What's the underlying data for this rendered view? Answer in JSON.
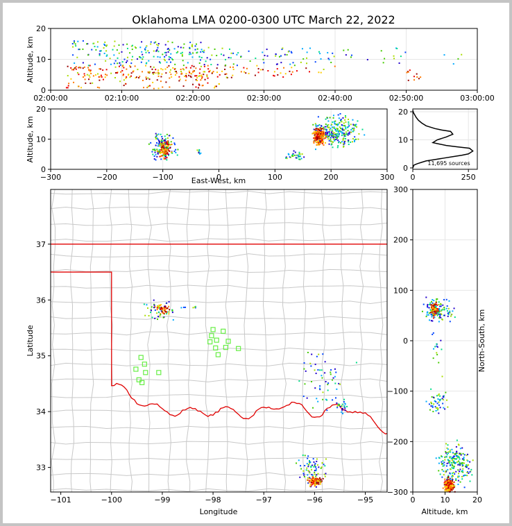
{
  "title": "Oklahoma LMA 0200-0300 UTC March 22, 2022",
  "colors": {
    "state_border": "#e00000",
    "county_lines": "#c8c8c8",
    "sensor": "#66ee44",
    "grid": "#e6e6e6"
  },
  "chart_data": [
    {
      "name": "time-height",
      "type": "heatmap",
      "xlabel": "",
      "ylabel": "Altitude, km",
      "x_ticks": [
        "02:00:00",
        "02:10:00",
        "02:20:00",
        "02:30:00",
        "02:40:00",
        "02:50:00",
        "03:00:00"
      ],
      "ylim": [
        0,
        20
      ],
      "y_ticks": [
        0,
        10,
        20
      ],
      "clusters": [
        {
          "x": [
            3,
            22
          ],
          "y": [
            4,
            16
          ],
          "density": 0.55
        },
        {
          "x": [
            2,
            24
          ],
          "y": [
            0.5,
            8
          ],
          "density": 0.4
        },
        {
          "x": [
            22,
            34
          ],
          "y": [
            4,
            14
          ],
          "density": 0.35
        },
        {
          "x": [
            34,
            40
          ],
          "y": [
            4,
            14
          ],
          "density": 0.2
        },
        {
          "x": [
            40,
            50
          ],
          "y": [
            8,
            14
          ],
          "density": 0.12
        },
        {
          "x": [
            50,
            58
          ],
          "y": [
            8,
            12
          ],
          "density": 0.06
        },
        {
          "x": [
            50,
            52
          ],
          "y": [
            3,
            8
          ],
          "density": 0.5
        }
      ]
    },
    {
      "name": "east-west-height",
      "type": "heatmap",
      "xlabel": "East-West, km",
      "ylabel": "Altitude, km",
      "xlim": [
        -300,
        300
      ],
      "x_ticks": [
        -300,
        -200,
        -100,
        0,
        100,
        200,
        300
      ],
      "ylim": [
        0,
        20
      ],
      "y_ticks": [
        0,
        10,
        20
      ],
      "clusters": [
        {
          "x": [
            -130,
            -70
          ],
          "y": [
            1,
            14
          ],
          "density": 0.5,
          "core": [
            -98,
            6.5
          ]
        },
        {
          "x": [
            -45,
            -30
          ],
          "y": [
            4.5,
            7
          ],
          "density": 0.4
        },
        {
          "x": [
            110,
            160
          ],
          "y": [
            2,
            7
          ],
          "density": 0.25
        },
        {
          "x": [
            150,
            270
          ],
          "y": [
            5,
            20
          ],
          "density": 0.5,
          "core": [
            178,
            11
          ]
        }
      ]
    },
    {
      "name": "altitude-histogram",
      "type": "line",
      "xlabel": "",
      "ylabel": "",
      "xlim": [
        0,
        290
      ],
      "x_ticks": [
        0,
        250
      ],
      "ylim": [
        -0.5,
        21
      ],
      "y_ticks": [
        0,
        10,
        20
      ],
      "annotation": "11,695 sources",
      "x": [
        0,
        5,
        20,
        40,
        60,
        100,
        140,
        180,
        220,
        250,
        270,
        255,
        200,
        150,
        120,
        90,
        110,
        150,
        180,
        170,
        130,
        100,
        80,
        60,
        40,
        25,
        15,
        8,
        4,
        2,
        0
      ],
      "y": [
        0,
        1,
        1.5,
        2,
        2.5,
        3,
        3.5,
        4,
        4.5,
        5,
        6,
        7,
        7.5,
        8,
        8.5,
        9,
        10,
        11,
        12,
        13,
        13.5,
        14,
        14.5,
        15,
        16,
        17,
        18,
        19,
        19.5,
        20,
        20.5
      ]
    },
    {
      "name": "plan-view-map",
      "type": "scatter",
      "xlabel": "Longitude",
      "ylabel": "Latitude",
      "xlim": [
        -101.2,
        -94.57
      ],
      "x_ticks": [
        -101,
        -100,
        -99,
        -98,
        -97,
        -96,
        -95
      ],
      "ylim": [
        32.56,
        37.98
      ],
      "y_ticks": [
        33,
        34,
        35,
        36,
        37
      ],
      "sensors": [
        [
          -98.0,
          35.47
        ],
        [
          -98.03,
          35.36
        ],
        [
          -97.93,
          35.28
        ],
        [
          -98.06,
          35.25
        ],
        [
          -97.8,
          35.44
        ],
        [
          -97.7,
          35.26
        ],
        [
          -97.75,
          35.15
        ],
        [
          -97.5,
          35.13
        ],
        [
          -97.95,
          35.14
        ],
        [
          -97.9,
          35.02
        ],
        [
          -99.42,
          34.97
        ],
        [
          -99.35,
          34.85
        ],
        [
          -99.52,
          34.76
        ],
        [
          -99.33,
          34.7
        ],
        [
          -99.07,
          34.7
        ],
        [
          -99.46,
          34.57
        ],
        [
          -99.4,
          34.52
        ]
      ],
      "clusters": [
        {
          "x": [
            -99.45,
            -98.7
          ],
          "y": [
            35.55,
            36.08
          ],
          "density": 0.55,
          "core": [
            -99.0,
            35.83
          ]
        },
        {
          "x": [
            -98.75,
            -98.25
          ],
          "y": [
            35.83,
            35.92
          ],
          "density": 0.35
        },
        {
          "x": [
            -96.5,
            -95.6
          ],
          "y": [
            32.56,
            33.35
          ],
          "density": 0.6,
          "core": [
            -96.0,
            32.75
          ]
        },
        {
          "x": [
            -95.6,
            -95.3
          ],
          "y": [
            33.9,
            34.3
          ],
          "density": 0.4
        },
        {
          "x": [
            -96.6,
            -95.0
          ],
          "y": [
            33.8,
            35.4
          ],
          "density": 0.05
        }
      ]
    },
    {
      "name": "north-south-height",
      "type": "heatmap",
      "xlabel": "Altitude, km",
      "ylabel": "North-South, km",
      "xlim": [
        0,
        20
      ],
      "x_ticks": [
        0,
        10,
        20
      ],
      "ylim": [
        -300,
        300
      ],
      "y_ticks": [
        -300,
        -200,
        -100,
        0,
        100,
        200,
        300
      ],
      "clusters": [
        {
          "x": [
            1,
            14
          ],
          "y": [
            30,
            90
          ],
          "density": 0.5,
          "core": [
            6.5,
            63
          ]
        },
        {
          "x": [
            3,
            12
          ],
          "y": [
            -160,
            -80
          ],
          "density": 0.12
        },
        {
          "x": [
            4,
            10
          ],
          "y": [
            -80,
            30
          ],
          "density": 0.04
        },
        {
          "x": [
            6,
            20
          ],
          "y": [
            -300,
            -190
          ],
          "density": 0.5,
          "core": [
            11,
            -288
          ]
        }
      ]
    }
  ]
}
